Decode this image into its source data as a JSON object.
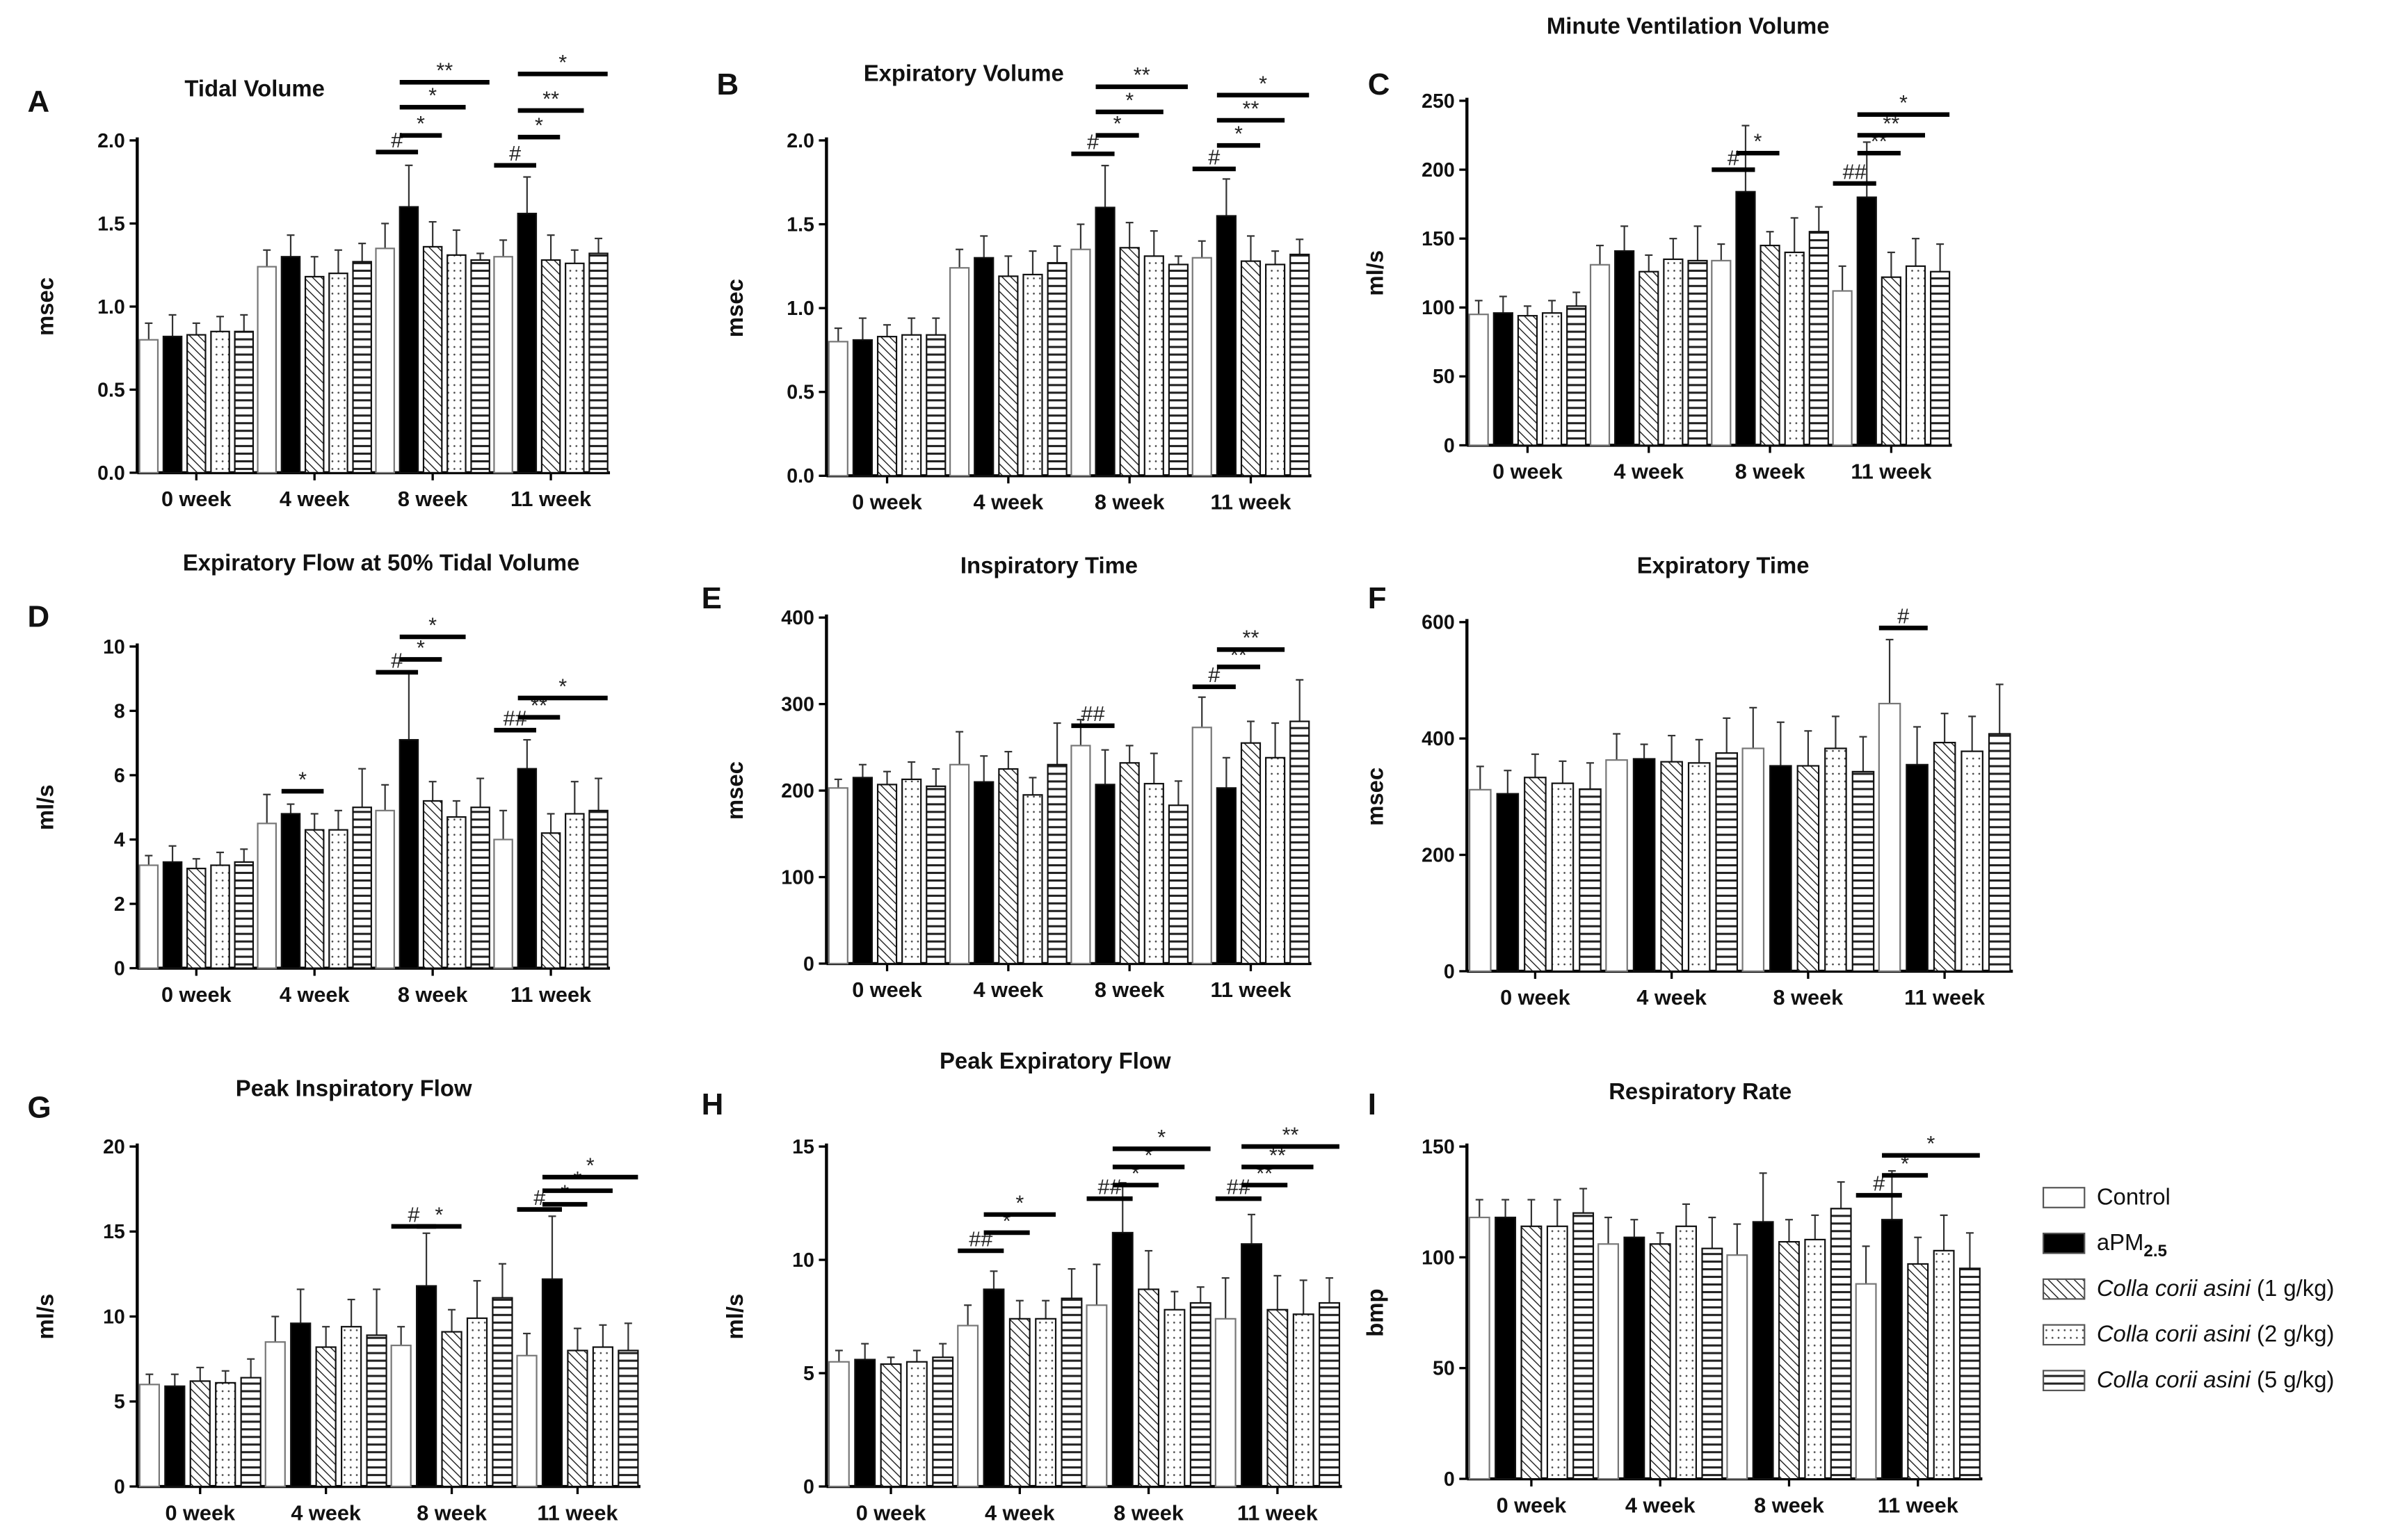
{
  "categories": [
    "0 week",
    "4 week",
    "8 week",
    "11 week"
  ],
  "legend": [
    {
      "name": "Control",
      "pattern": "white",
      "rest": "Control"
    },
    {
      "name": "aPM2.5",
      "pattern": "black",
      "rest": "aPM",
      "sub": "2.5"
    },
    {
      "name": "Colla corii asini (1 g/kg)",
      "pattern": "diagonal",
      "italic": "Colla corii asini",
      "rest": " (1 g/kg)"
    },
    {
      "name": "Colla corii asini (2 g/kg)",
      "pattern": "dots",
      "italic": "Colla corii asini",
      "rest": " (2 g/kg)"
    },
    {
      "name": "Colla corii asini (5 g/kg)",
      "pattern": "hlines",
      "italic": "Colla corii asini",
      "rest": " (5 g/kg)"
    }
  ],
  "chart_data": [
    {
      "letter": "A",
      "type": "bar",
      "title": "Tidal Volume",
      "ylabel": "msec",
      "ylim": [
        0,
        2.0
      ],
      "yticks": [
        "0.0",
        "0.5",
        "1.0",
        "1.5",
        "2.0"
      ],
      "values": [
        [
          0.8,
          0.82,
          0.83,
          0.85,
          0.85
        ],
        [
          1.24,
          1.3,
          1.18,
          1.2,
          1.27
        ],
        [
          1.35,
          1.6,
          1.36,
          1.31,
          1.28
        ],
        [
          1.3,
          1.56,
          1.28,
          1.26,
          1.32
        ]
      ],
      "errors": [
        [
          0.1,
          0.13,
          0.07,
          0.09,
          0.1
        ],
        [
          0.1,
          0.13,
          0.12,
          0.14,
          0.11
        ],
        [
          0.15,
          0.25,
          0.15,
          0.15,
          0.04
        ],
        [
          0.1,
          0.22,
          0.15,
          0.08,
          0.09
        ]
      ],
      "significance": [
        {
          "g": 2,
          "from": 0,
          "to": 1,
          "label": "#",
          "y": 1.93
        },
        {
          "g": 2,
          "from": 1,
          "to": 2,
          "label": "*",
          "y": 2.03
        },
        {
          "g": 2,
          "from": 1,
          "to": 3,
          "label": "*",
          "y": 2.2
        },
        {
          "g": 2,
          "from": 1,
          "to": 4,
          "label": "**",
          "y": 2.35
        },
        {
          "g": 3,
          "from": 0,
          "to": 1,
          "label": "#",
          "y": 1.85
        },
        {
          "g": 3,
          "from": 1,
          "to": 2,
          "label": "*",
          "y": 2.02
        },
        {
          "g": 3,
          "from": 1,
          "to": 3,
          "label": "**",
          "y": 2.18
        },
        {
          "g": 3,
          "from": 1,
          "to": 4,
          "label": "*",
          "y": 2.4
        }
      ]
    },
    {
      "letter": "B",
      "type": "bar",
      "title": "Expiratory Volume",
      "ylabel": "msec",
      "ylim": [
        0,
        2.0
      ],
      "yticks": [
        "0.0",
        "0.5",
        "1.0",
        "1.5",
        "2.0"
      ],
      "values": [
        [
          0.8,
          0.81,
          0.83,
          0.84,
          0.84
        ],
        [
          1.24,
          1.3,
          1.19,
          1.2,
          1.27
        ],
        [
          1.35,
          1.6,
          1.36,
          1.31,
          1.26
        ],
        [
          1.3,
          1.55,
          1.28,
          1.26,
          1.32
        ]
      ],
      "errors": [
        [
          0.08,
          0.13,
          0.07,
          0.1,
          0.1
        ],
        [
          0.11,
          0.13,
          0.12,
          0.14,
          0.1
        ],
        [
          0.15,
          0.25,
          0.15,
          0.15,
          0.05
        ],
        [
          0.1,
          0.22,
          0.15,
          0.08,
          0.09
        ]
      ],
      "significance": [
        {
          "g": 2,
          "from": 0,
          "to": 1,
          "label": "#",
          "y": 1.92
        },
        {
          "g": 2,
          "from": 1,
          "to": 2,
          "label": "*",
          "y": 2.03
        },
        {
          "g": 2,
          "from": 1,
          "to": 3,
          "label": "*",
          "y": 2.17
        },
        {
          "g": 2,
          "from": 1,
          "to": 4,
          "label": "**",
          "y": 2.32
        },
        {
          "g": 3,
          "from": 0,
          "to": 1,
          "label": "#",
          "y": 1.83
        },
        {
          "g": 3,
          "from": 1,
          "to": 2,
          "label": "*",
          "y": 1.97
        },
        {
          "g": 3,
          "from": 1,
          "to": 3,
          "label": "**",
          "y": 2.12
        },
        {
          "g": 3,
          "from": 1,
          "to": 4,
          "label": "*",
          "y": 2.27
        }
      ]
    },
    {
      "letter": "C",
      "type": "bar",
      "title": "Minute Ventilation Volume",
      "ylabel": "ml/s",
      "ylim": [
        0,
        250
      ],
      "yticks": [
        "0",
        "50",
        "100",
        "150",
        "200",
        "250"
      ],
      "values": [
        [
          95,
          96,
          94,
          96,
          101
        ],
        [
          131,
          141,
          126,
          135,
          134
        ],
        [
          134,
          184,
          145,
          140,
          155
        ],
        [
          112,
          180,
          122,
          130,
          126
        ]
      ],
      "errors": [
        [
          10,
          12,
          7,
          9,
          10
        ],
        [
          14,
          18,
          12,
          15,
          25
        ],
        [
          12,
          48,
          10,
          25,
          18
        ],
        [
          18,
          40,
          18,
          20,
          20
        ]
      ],
      "significance": [
        {
          "g": 2,
          "from": 0,
          "to": 1,
          "label": "#",
          "y": 200
        },
        {
          "g": 2,
          "from": 1,
          "to": 2,
          "label": "*",
          "y": 212
        },
        {
          "g": 3,
          "from": 0,
          "to": 1,
          "label": "##",
          "y": 190
        },
        {
          "g": 3,
          "from": 1,
          "to": 2,
          "label": "**",
          "y": 212
        },
        {
          "g": 3,
          "from": 1,
          "to": 3,
          "label": "**",
          "y": 225
        },
        {
          "g": 3,
          "from": 1,
          "to": 4,
          "label": "*",
          "y": 240
        }
      ]
    },
    {
      "letter": "D",
      "type": "bar",
      "title": "Expiratory Flow at 50% Tidal Volume",
      "ylabel": "ml/s",
      "ylim": [
        0,
        10
      ],
      "yticks": [
        "0",
        "2",
        "4",
        "6",
        "8",
        "10"
      ],
      "values": [
        [
          3.2,
          3.3,
          3.1,
          3.2,
          3.3
        ],
        [
          4.5,
          4.8,
          4.3,
          4.3,
          5.0
        ],
        [
          4.9,
          7.1,
          5.2,
          4.7,
          5.0
        ],
        [
          4.0,
          6.2,
          4.2,
          4.8,
          4.9
        ]
      ],
      "errors": [
        [
          0.3,
          0.5,
          0.3,
          0.4,
          0.4
        ],
        [
          0.9,
          0.3,
          0.5,
          0.6,
          1.2
        ],
        [
          0.8,
          2.1,
          0.6,
          0.5,
          0.9
        ],
        [
          0.9,
          0.9,
          0.6,
          1.0,
          1.0
        ]
      ],
      "significance": [
        {
          "g": 1,
          "from": 1,
          "to": 2,
          "label": "*",
          "y": 5.5
        },
        {
          "g": 2,
          "from": 0,
          "to": 1,
          "label": "#",
          "y": 9.2
        },
        {
          "g": 2,
          "from": 1,
          "to": 2,
          "label": "*",
          "y": 9.6
        },
        {
          "g": 2,
          "from": 1,
          "to": 3,
          "label": "*",
          "y": 10.3
        },
        {
          "g": 3,
          "from": 0,
          "to": 1,
          "label": "##",
          "y": 7.4
        },
        {
          "g": 3,
          "from": 1,
          "to": 2,
          "label": "**",
          "y": 7.8
        },
        {
          "g": 3,
          "from": 1,
          "to": 4,
          "label": "*",
          "y": 8.4
        }
      ]
    },
    {
      "letter": "E",
      "type": "bar",
      "title": "Inspiratory Time",
      "ylabel": "msec",
      "ylim": [
        0,
        400
      ],
      "yticks": [
        "0",
        "100",
        "200",
        "300",
        "400"
      ],
      "values": [
        [
          203,
          215,
          207,
          213,
          205
        ],
        [
          230,
          210,
          225,
          195,
          230
        ],
        [
          252,
          207,
          232,
          208,
          183
        ],
        [
          273,
          203,
          255,
          238,
          280
        ]
      ],
      "errors": [
        [
          10,
          15,
          15,
          20,
          20
        ],
        [
          38,
          30,
          20,
          20,
          48
        ],
        [
          30,
          40,
          20,
          35,
          28
        ],
        [
          35,
          35,
          25,
          40,
          48
        ]
      ],
      "significance": [
        {
          "g": 2,
          "from": 0,
          "to": 1,
          "label": "##",
          "y": 275
        },
        {
          "g": 3,
          "from": 0,
          "to": 1,
          "label": "#",
          "y": 320
        },
        {
          "g": 3,
          "from": 1,
          "to": 2,
          "label": "**",
          "y": 343
        },
        {
          "g": 3,
          "from": 1,
          "to": 3,
          "label": "**",
          "y": 363
        }
      ]
    },
    {
      "letter": "F",
      "type": "bar",
      "title": "Expiratory Time",
      "ylabel": "msec",
      "ylim": [
        0,
        600
      ],
      "yticks": [
        "0",
        "200",
        "400",
        "600"
      ],
      "values": [
        [
          312,
          305,
          333,
          323,
          313
        ],
        [
          363,
          365,
          360,
          358,
          375
        ],
        [
          383,
          353,
          353,
          383,
          343
        ],
        [
          460,
          355,
          393,
          378,
          408
        ]
      ],
      "errors": [
        [
          40,
          40,
          40,
          38,
          45
        ],
        [
          45,
          25,
          45,
          40,
          60
        ],
        [
          70,
          75,
          60,
          55,
          60
        ],
        [
          110,
          65,
          50,
          60,
          85
        ]
      ],
      "significance": [
        {
          "g": 3,
          "from": 0,
          "to": 1,
          "label": "#",
          "y": 590
        }
      ]
    },
    {
      "letter": "G",
      "type": "bar",
      "title": "Peak Inspiratory Flow",
      "ylabel": "ml/s",
      "ylim": [
        0,
        20
      ],
      "yticks": [
        "0",
        "5",
        "10",
        "15",
        "20"
      ],
      "values": [
        [
          6.0,
          5.9,
          6.2,
          6.1,
          6.4
        ],
        [
          8.5,
          9.6,
          8.2,
          9.4,
          8.9
        ],
        [
          8.3,
          11.8,
          9.1,
          9.9,
          11.1
        ],
        [
          7.7,
          12.2,
          8.0,
          8.2,
          8.0
        ]
      ],
      "errors": [
        [
          0.6,
          0.7,
          0.8,
          0.7,
          1.1
        ],
        [
          1.5,
          2.0,
          1.2,
          1.6,
          2.7
        ],
        [
          1.1,
          3.1,
          1.3,
          2.2,
          2.0
        ],
        [
          1.3,
          3.7,
          1.3,
          1.3,
          1.6
        ]
      ],
      "significance": [
        {
          "g": 2,
          "from": 0,
          "to": 1,
          "label": "#",
          "y": 15.3
        },
        {
          "g": 2,
          "from": 1,
          "to": 2,
          "label": "*",
          "y": 15.3
        },
        {
          "g": 3,
          "from": 0,
          "to": 1,
          "label": "#",
          "y": 16.3
        },
        {
          "g": 3,
          "from": 1,
          "to": 2,
          "label": "*",
          "y": 16.6
        },
        {
          "g": 3,
          "from": 1,
          "to": 3,
          "label": "*",
          "y": 17.4
        },
        {
          "g": 3,
          "from": 1,
          "to": 4,
          "label": "*",
          "y": 18.2
        }
      ]
    },
    {
      "letter": "H",
      "type": "bar",
      "title": "Peak Expiratory Flow",
      "ylabel": "ml/s",
      "ylim": [
        0,
        15
      ],
      "yticks": [
        "0",
        "5",
        "10",
        "15"
      ],
      "values": [
        [
          5.5,
          5.6,
          5.4,
          5.5,
          5.7
        ],
        [
          7.1,
          8.7,
          7.4,
          7.4,
          8.3
        ],
        [
          8.0,
          11.2,
          8.7,
          7.8,
          8.1
        ],
        [
          7.4,
          10.7,
          7.8,
          7.6,
          8.1
        ]
      ],
      "errors": [
        [
          0.5,
          0.7,
          0.3,
          0.5,
          0.6
        ],
        [
          0.9,
          0.8,
          0.8,
          0.8,
          1.3
        ],
        [
          1.8,
          2.2,
          1.7,
          0.8,
          0.7
        ],
        [
          1.8,
          1.3,
          1.5,
          1.5,
          1.1
        ]
      ],
      "significance": [
        {
          "g": 1,
          "from": 0,
          "to": 1,
          "label": "##",
          "y": 10.4
        },
        {
          "g": 1,
          "from": 1,
          "to": 2,
          "label": "*",
          "y": 11.2
        },
        {
          "g": 1,
          "from": 1,
          "to": 3,
          "label": "*",
          "y": 12.0
        },
        {
          "g": 2,
          "from": 0,
          "to": 1,
          "label": "##",
          "y": 12.7
        },
        {
          "g": 2,
          "from": 1,
          "to": 2,
          "label": "*",
          "y": 13.3
        },
        {
          "g": 2,
          "from": 1,
          "to": 3,
          "label": "*",
          "y": 14.1
        },
        {
          "g": 2,
          "from": 1,
          "to": 4,
          "label": "*",
          "y": 14.9
        },
        {
          "g": 3,
          "from": 0,
          "to": 1,
          "label": "##",
          "y": 12.7
        },
        {
          "g": 3,
          "from": 1,
          "to": 2,
          "label": "**",
          "y": 13.3
        },
        {
          "g": 3,
          "from": 1,
          "to": 3,
          "label": "**",
          "y": 14.1
        },
        {
          "g": 3,
          "from": 1,
          "to": 4,
          "label": "**",
          "y": 15.0
        }
      ]
    },
    {
      "letter": "I",
      "type": "bar",
      "title": "Respiratory Rate",
      "ylabel": "bmp",
      "ylim": [
        0,
        150
      ],
      "yticks": [
        "0",
        "50",
        "100",
        "150"
      ],
      "values": [
        [
          118,
          118,
          114,
          114,
          120
        ],
        [
          106,
          109,
          106,
          114,
          104
        ],
        [
          101,
          116,
          107,
          108,
          122
        ],
        [
          88,
          117,
          97,
          103,
          95
        ]
      ],
      "errors": [
        [
          8,
          8,
          12,
          12,
          11
        ],
        [
          12,
          8,
          5,
          10,
          14
        ],
        [
          14,
          22,
          10,
          11,
          12
        ],
        [
          17,
          22,
          12,
          16,
          16
        ]
      ],
      "significance": [
        {
          "g": 3,
          "from": 0,
          "to": 1,
          "label": "#",
          "y": 128
        },
        {
          "g": 3,
          "from": 1,
          "to": 2,
          "label": "*",
          "y": 137
        },
        {
          "g": 3,
          "from": 1,
          "to": 4,
          "label": "*",
          "y": 146
        }
      ]
    }
  ]
}
